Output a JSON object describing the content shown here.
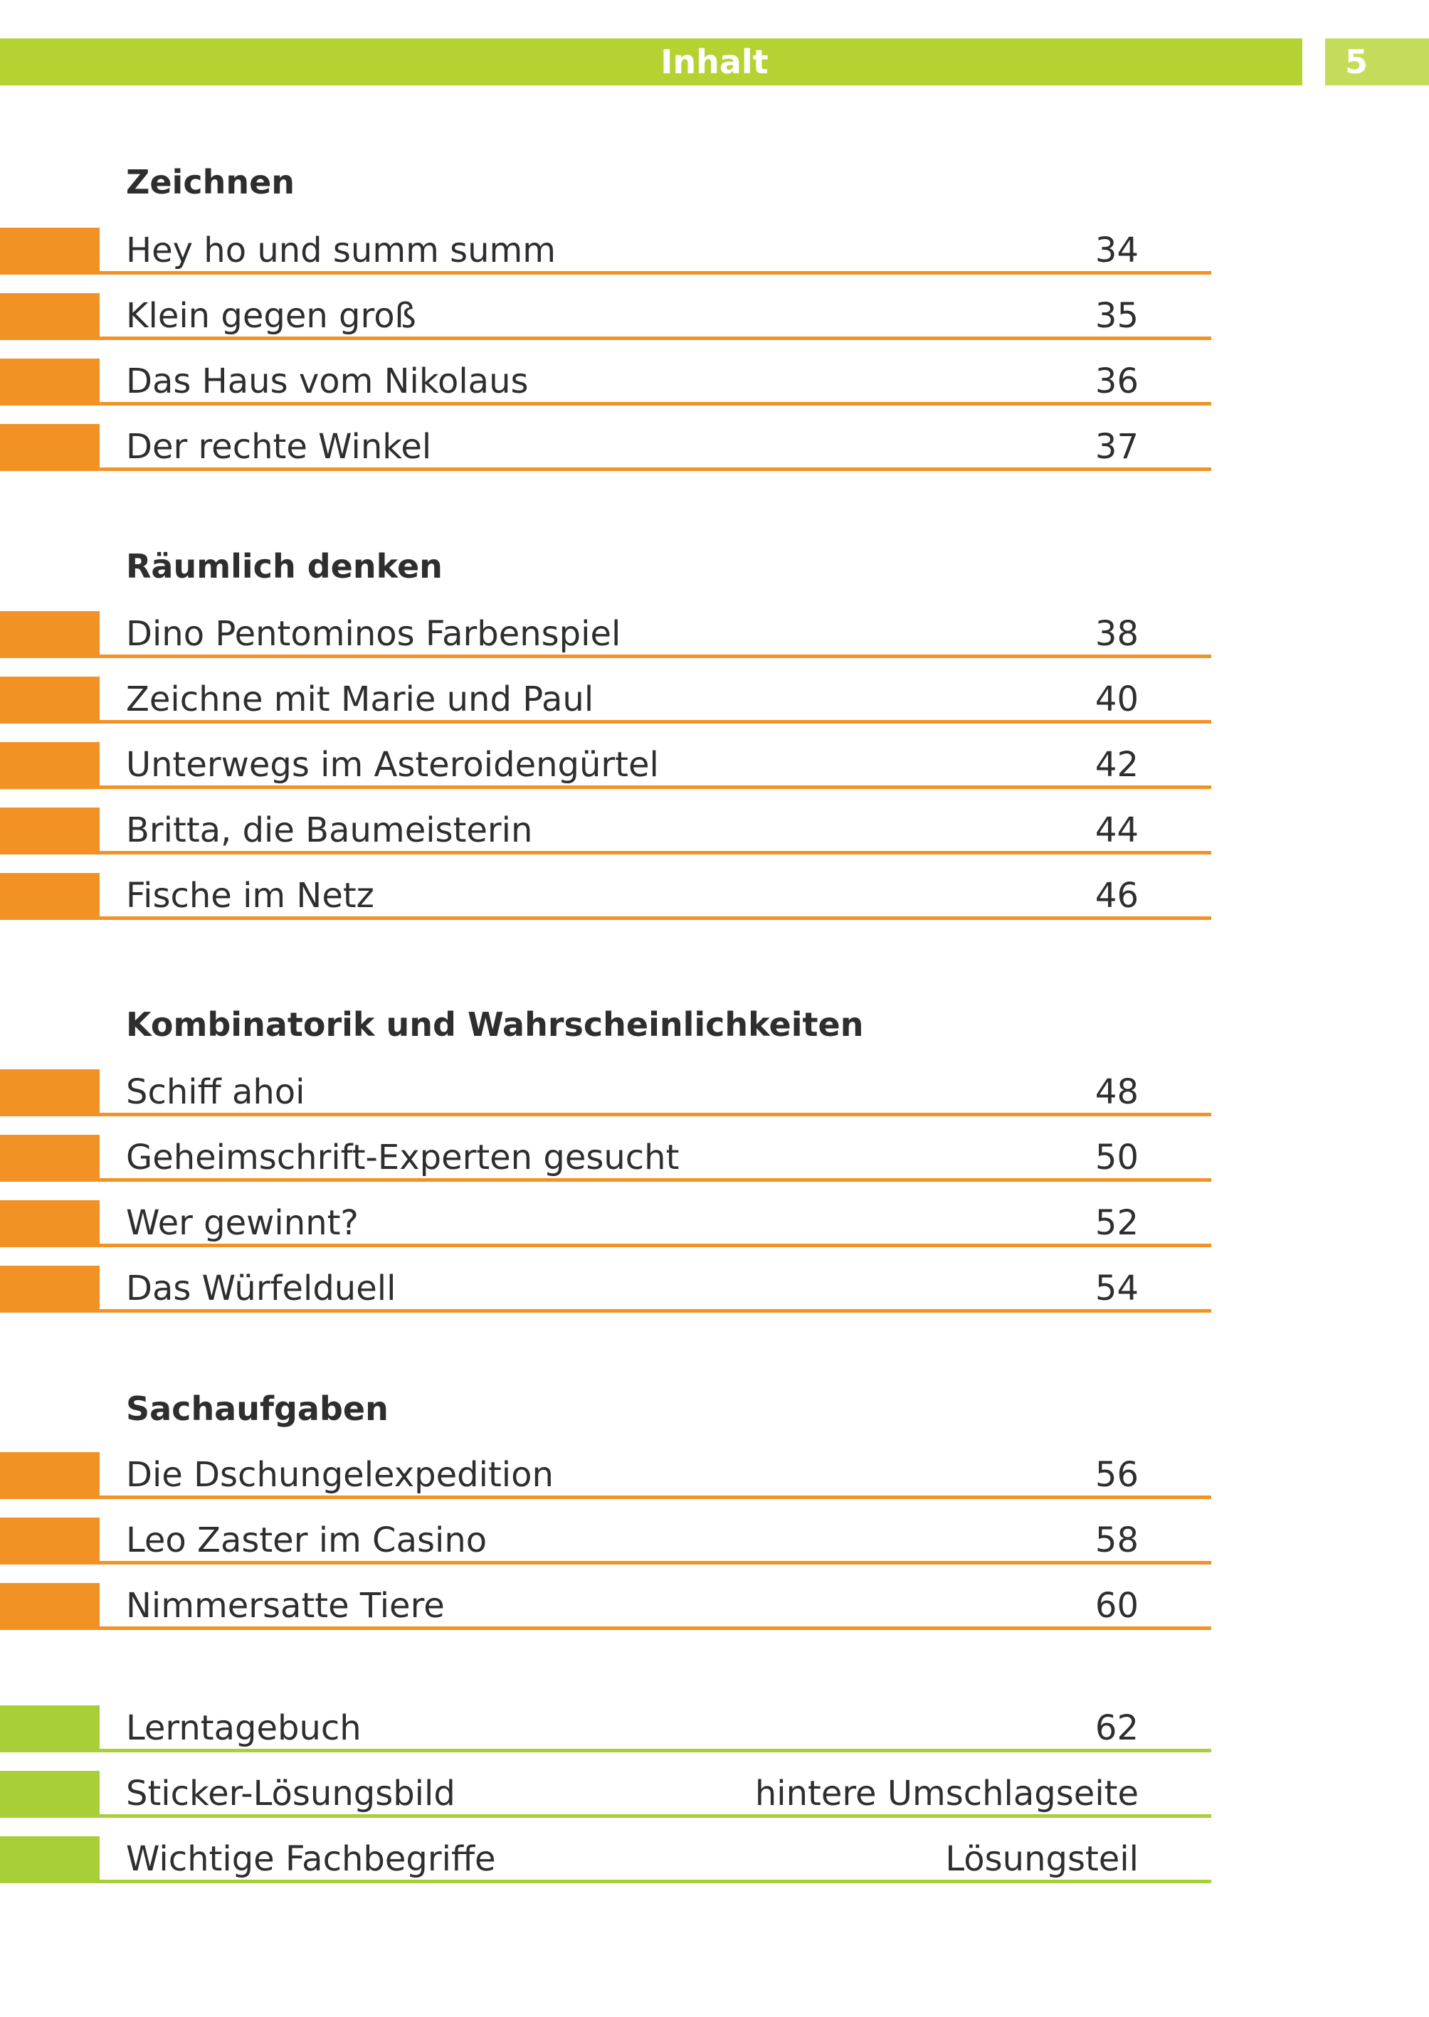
{
  "header": {
    "title": "Inhalt",
    "page_number": "5"
  },
  "sections": [
    {
      "heading": "Zeichnen",
      "entries": [
        {
          "title": "Hey ho und summ summ",
          "page": "34"
        },
        {
          "title": "Klein gegen groß",
          "page": "35"
        },
        {
          "title": "Das Haus vom Nikolaus",
          "page": "36"
        },
        {
          "title": "Der rechte Winkel",
          "page": "37"
        }
      ]
    },
    {
      "heading": "Räumlich denken",
      "entries": [
        {
          "title": "Dino Pentominos Farbenspiel",
          "page": "38"
        },
        {
          "title": "Zeichne mit Marie und Paul",
          "page": "40"
        },
        {
          "title": "Unterwegs im Asteroidengürtel",
          "page": "42"
        },
        {
          "title": "Britta, die Baumeisterin",
          "page": "44"
        },
        {
          "title": "Fische im Netz",
          "page": "46"
        }
      ]
    },
    {
      "heading": "Kombinatorik und Wahrscheinlichkeiten",
      "entries": [
        {
          "title": "Schiff ahoi",
          "page": "48"
        },
        {
          "title": "Geheimschrift-Experten gesucht",
          "page": "50"
        },
        {
          "title": "Wer gewinnt?",
          "page": "52"
        },
        {
          "title": "Das Würfelduell",
          "page": "54"
        }
      ]
    },
    {
      "heading": "Sachaufgaben",
      "entries": [
        {
          "title": "Die Dschungelexpedition",
          "page": "56"
        },
        {
          "title": "Leo Zaster im Casino",
          "page": "58"
        },
        {
          "title": "Nimmersatte Tiere",
          "page": "60"
        }
      ]
    }
  ],
  "appendix": [
    {
      "title": "Lerntagebuch",
      "page": "62"
    },
    {
      "title": "Sticker-Lösungsbild",
      "page": "hintere Umschlagseite"
    },
    {
      "title": "Wichtige Fachbegriffe",
      "page": "Lösungsteil"
    }
  ],
  "colors": {
    "orange": "#f39224",
    "green": "#a9cf38",
    "header_green": "#b4d333"
  }
}
